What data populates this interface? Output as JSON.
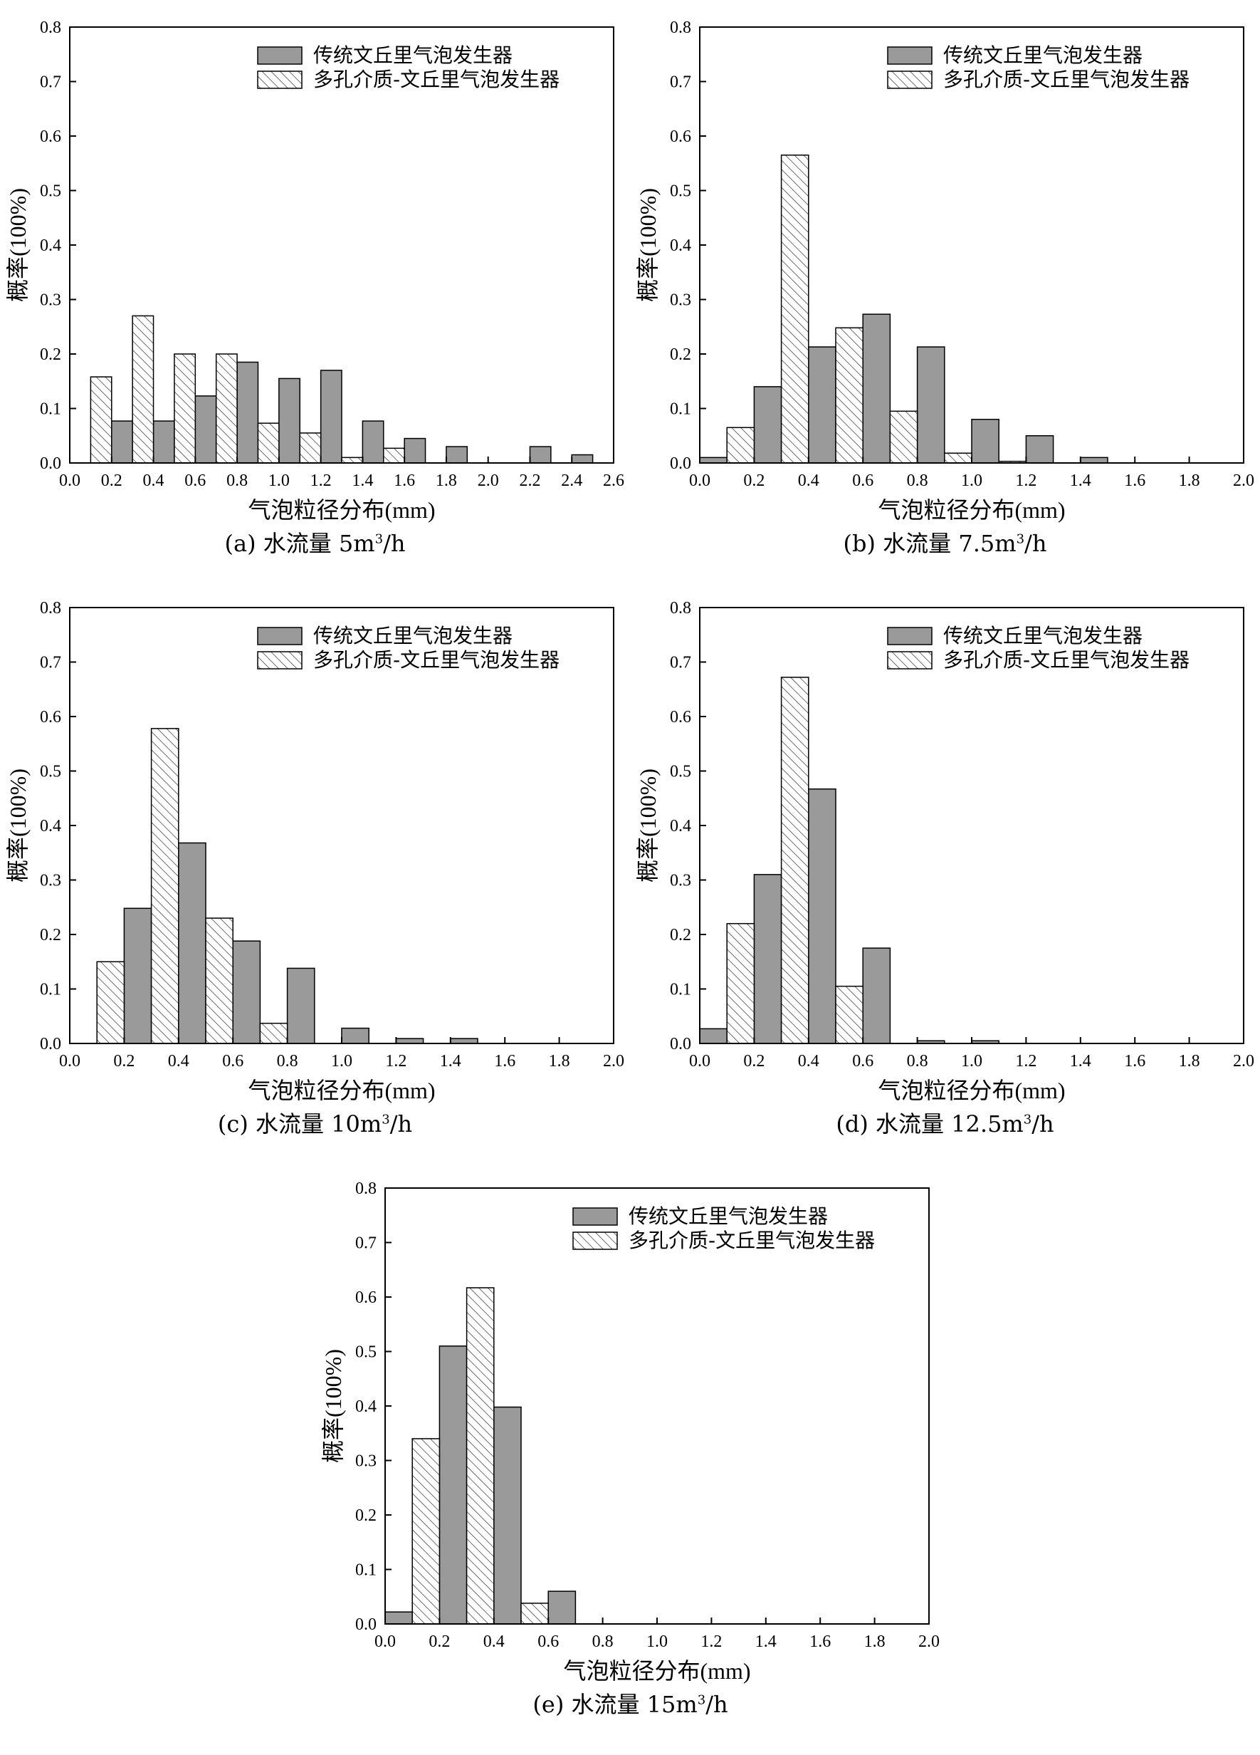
{
  "common": {
    "series_names": [
      "传统文丘里气泡发生器",
      "多孔介质-文丘里气泡发生器"
    ],
    "xlabel": "气泡粒径分布(mm)",
    "ylabel": "概率(100%)",
    "colors": {
      "traditional": "#9a9a9a",
      "porous_fill": "#ffffff",
      "stroke": "#000000"
    }
  },
  "panels": [
    {
      "caption_prefix": "(a) 水流量 5m",
      "caption_sup": "3",
      "caption_suffix": "/h"
    },
    {
      "caption_prefix": "(b) 水流量 7.5m",
      "caption_sup": "3",
      "caption_suffix": "/h"
    },
    {
      "caption_prefix": "(c) 水流量 10m",
      "caption_sup": "3",
      "caption_suffix": "/h"
    },
    {
      "caption_prefix": "(d) 水流量 12.5m",
      "caption_sup": "3",
      "caption_suffix": "/h"
    },
    {
      "caption_prefix": "(e) 水流量 15m",
      "caption_sup": "3",
      "caption_suffix": "/h"
    }
  ],
  "chart_data": [
    {
      "type": "bar",
      "title": "(a) 水流量 5m3/h",
      "xlabel": "气泡粒径分布(mm)",
      "ylabel": "概率(100%)",
      "xlim": [
        0.0,
        2.6
      ],
      "ylim": [
        0.0,
        0.8
      ],
      "bin_width": 0.1,
      "xticks": [
        0.0,
        0.2,
        0.4,
        0.6,
        0.8,
        1.0,
        1.2,
        1.4,
        1.6,
        1.8,
        2.0,
        2.2,
        2.4,
        2.6
      ],
      "xtick_labels": [
        "0.0",
        "0.2",
        "0.4",
        "0.6",
        "0.8",
        "1.0",
        "1.2",
        "1.4",
        "1.6",
        "1.8",
        "2.0",
        "2.2",
        "2.4",
        "2.6"
      ],
      "yticks": [
        0.0,
        0.1,
        0.2,
        0.3,
        0.4,
        0.5,
        0.6,
        0.7,
        0.8
      ],
      "ytick_labels": [
        "0.0",
        "0.1",
        "0.2",
        "0.3",
        "0.4",
        "0.5",
        "0.6",
        "0.7",
        "0.8"
      ],
      "legend": "top-right",
      "series": [
        {
          "name": "传统文丘里气泡发生器",
          "style": "solid",
          "x": [
            0.25,
            0.45,
            0.65,
            0.85,
            1.05,
            1.25,
            1.45,
            1.65,
            1.85,
            2.25,
            2.45
          ],
          "values": [
            0.077,
            0.077,
            0.123,
            0.185,
            0.155,
            0.17,
            0.077,
            0.045,
            0.03,
            0.03,
            0.015
          ]
        },
        {
          "name": "多孔介质-文丘里气泡发生器",
          "style": "hatched",
          "x": [
            0.15,
            0.35,
            0.55,
            0.75,
            0.95,
            1.15,
            1.35,
            1.55
          ],
          "values": [
            0.158,
            0.27,
            0.2,
            0.2,
            0.073,
            0.055,
            0.01,
            0.027
          ]
        }
      ]
    },
    {
      "type": "bar",
      "title": "(b) 水流量 7.5m3/h",
      "xlabel": "气泡粒径分布(mm)",
      "ylabel": "概率(100%)",
      "xlim": [
        0.0,
        2.0
      ],
      "ylim": [
        0.0,
        0.8
      ],
      "bin_width": 0.1,
      "xticks": [
        0.0,
        0.2,
        0.4,
        0.6,
        0.8,
        1.0,
        1.2,
        1.4,
        1.6,
        1.8,
        2.0
      ],
      "xtick_labels": [
        "0.0",
        "0.2",
        "0.4",
        "0.6",
        "0.8",
        "1.0",
        "1.2",
        "1.4",
        "1.6",
        "1.8",
        "2.0"
      ],
      "yticks": [
        0.0,
        0.1,
        0.2,
        0.3,
        0.4,
        0.5,
        0.6,
        0.7,
        0.8
      ],
      "ytick_labels": [
        "0.0",
        "0.1",
        "0.2",
        "0.3",
        "0.4",
        "0.5",
        "0.6",
        "0.7",
        "0.8"
      ],
      "legend": "top-right",
      "series": [
        {
          "name": "传统文丘里气泡发生器",
          "style": "solid",
          "x": [
            0.05,
            0.25,
            0.45,
            0.65,
            0.85,
            1.05,
            1.25,
            1.45
          ],
          "values": [
            0.01,
            0.14,
            0.213,
            0.273,
            0.213,
            0.08,
            0.05,
            0.01
          ]
        },
        {
          "name": "多孔介质-文丘里气泡发生器",
          "style": "hatched",
          "x": [
            0.15,
            0.35,
            0.55,
            0.75,
            0.95,
            1.15
          ],
          "values": [
            0.065,
            0.565,
            0.248,
            0.095,
            0.018,
            0.003
          ]
        }
      ]
    },
    {
      "type": "bar",
      "title": "(c) 水流量 10m3/h",
      "xlabel": "气泡粒径分布(mm)",
      "ylabel": "概率(100%)",
      "xlim": [
        0.0,
        2.0
      ],
      "ylim": [
        0.0,
        0.8
      ],
      "bin_width": 0.1,
      "xticks": [
        0.0,
        0.2,
        0.4,
        0.6,
        0.8,
        1.0,
        1.2,
        1.4,
        1.6,
        1.8,
        2.0
      ],
      "xtick_labels": [
        "0.0",
        "0.2",
        "0.4",
        "0.6",
        "0.8",
        "1.0",
        "1.2",
        "1.4",
        "1.6",
        "1.8",
        "2.0"
      ],
      "yticks": [
        0.0,
        0.1,
        0.2,
        0.3,
        0.4,
        0.5,
        0.6,
        0.7,
        0.8
      ],
      "ytick_labels": [
        "0.0",
        "0.1",
        "0.2",
        "0.3",
        "0.4",
        "0.5",
        "0.6",
        "0.7",
        "0.8"
      ],
      "legend": "top-right",
      "series": [
        {
          "name": "传统文丘里气泡发生器",
          "style": "solid",
          "x": [
            0.25,
            0.45,
            0.65,
            0.85,
            1.05,
            1.25,
            1.45
          ],
          "values": [
            0.248,
            0.368,
            0.188,
            0.138,
            0.028,
            0.009,
            0.009
          ]
        },
        {
          "name": "多孔介质-文丘里气泡发生器",
          "style": "hatched",
          "x": [
            0.15,
            0.35,
            0.55,
            0.75
          ],
          "values": [
            0.15,
            0.578,
            0.23,
            0.037
          ]
        }
      ]
    },
    {
      "type": "bar",
      "title": "(d) 水流量 12.5m3/h",
      "xlabel": "气泡粒径分布(mm)",
      "ylabel": "概率(100%)",
      "xlim": [
        0.0,
        2.0
      ],
      "ylim": [
        0.0,
        0.8
      ],
      "bin_width": 0.1,
      "xticks": [
        0.0,
        0.2,
        0.4,
        0.6,
        0.8,
        1.0,
        1.2,
        1.4,
        1.6,
        1.8,
        2.0
      ],
      "xtick_labels": [
        "0.0",
        "0.2",
        "0.4",
        "0.6",
        "0.8",
        "1.0",
        "1.2",
        "1.4",
        "1.6",
        "1.8",
        "2.0"
      ],
      "yticks": [
        0.0,
        0.1,
        0.2,
        0.3,
        0.4,
        0.5,
        0.6,
        0.7,
        0.8
      ],
      "ytick_labels": [
        "0.0",
        "0.1",
        "0.2",
        "0.3",
        "0.4",
        "0.5",
        "0.6",
        "0.7",
        "0.8"
      ],
      "legend": "top-right",
      "series": [
        {
          "name": "传统文丘里气泡发生器",
          "style": "solid",
          "x": [
            0.05,
            0.25,
            0.45,
            0.65,
            0.85,
            1.05
          ],
          "values": [
            0.027,
            0.31,
            0.467,
            0.175,
            0.005,
            0.005
          ]
        },
        {
          "name": "多孔介质-文丘里气泡发生器",
          "style": "hatched",
          "x": [
            0.15,
            0.35,
            0.55
          ],
          "values": [
            0.22,
            0.672,
            0.105
          ]
        }
      ]
    },
    {
      "type": "bar",
      "title": "(e) 水流量 15m3/h",
      "xlabel": "气泡粒径分布(mm)",
      "ylabel": "概率(100%)",
      "xlim": [
        0.0,
        2.0
      ],
      "ylim": [
        0.0,
        0.8
      ],
      "bin_width": 0.1,
      "xticks": [
        0.0,
        0.2,
        0.4,
        0.6,
        0.8,
        1.0,
        1.2,
        1.4,
        1.6,
        1.8,
        2.0
      ],
      "xtick_labels": [
        "0.0",
        "0.2",
        "0.4",
        "0.6",
        "0.8",
        "1.0",
        "1.2",
        "1.4",
        "1.6",
        "1.8",
        "2.0"
      ],
      "yticks": [
        0.0,
        0.1,
        0.2,
        0.3,
        0.4,
        0.5,
        0.6,
        0.7,
        0.8
      ],
      "ytick_labels": [
        "0.0",
        "0.1",
        "0.2",
        "0.3",
        "0.4",
        "0.5",
        "0.6",
        "0.7",
        "0.8"
      ],
      "legend": "top-right",
      "series": [
        {
          "name": "传统文丘里气泡发生器",
          "style": "solid",
          "x": [
            0.05,
            0.25,
            0.45,
            0.65
          ],
          "values": [
            0.022,
            0.51,
            0.398,
            0.06
          ]
        },
        {
          "name": "多孔介质-文丘里气泡发生器",
          "style": "hatched",
          "x": [
            0.15,
            0.35,
            0.55
          ],
          "values": [
            0.34,
            0.617,
            0.038
          ]
        }
      ]
    }
  ]
}
